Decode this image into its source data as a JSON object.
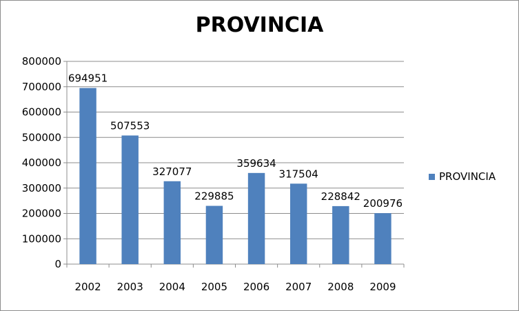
{
  "chart_data": {
    "type": "bar",
    "title": "PROVINCIA",
    "categories": [
      "2002",
      "2003",
      "2004",
      "2005",
      "2006",
      "2007",
      "2008",
      "2009"
    ],
    "series": [
      {
        "name": "PROVINCIA",
        "values": [
          694951,
          507553,
          327077,
          229885,
          359634,
          317504,
          228842,
          200976
        ],
        "color": "#4f81bd"
      }
    ],
    "y_ticks": [
      "0",
      "100000",
      "200000",
      "300000",
      "400000",
      "500000",
      "600000",
      "700000",
      "800000"
    ],
    "ylim": [
      0,
      800000
    ],
    "xlabel": "",
    "ylabel": "",
    "grid": true,
    "legend_position": "right",
    "data_labels": true
  }
}
